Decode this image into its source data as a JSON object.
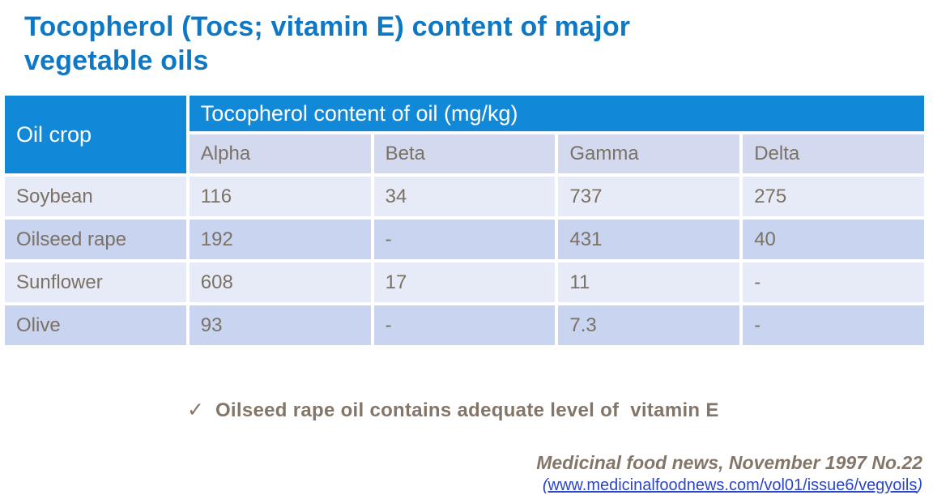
{
  "title": {
    "line1": "Tocopherol (Tocs; vitamin E) content of major",
    "line2": "vegetable oils"
  },
  "table": {
    "corner_header": "Oil crop",
    "group_header": "Tocopherol content of oil (mg/kg)",
    "columns": [
      "Alpha",
      "Beta",
      "Gamma",
      "Delta"
    ],
    "rows": [
      {
        "crop": "Soybean",
        "values": [
          "116",
          "34",
          "737",
          "275"
        ]
      },
      {
        "crop": "Oilseed rape",
        "values": [
          "192",
          "-",
          "431",
          "40"
        ]
      },
      {
        "crop": "Sunflower",
        "values": [
          "608",
          "17",
          "11",
          "-"
        ]
      },
      {
        "crop": "Olive",
        "values": [
          "93",
          "-",
          "7.3",
          "-"
        ]
      }
    ]
  },
  "note": {
    "check_icon": "✓",
    "text": "Oilseed rape oil contains adequate level of  vitamin E"
  },
  "source": {
    "citation": "Medicinal food news, November 1997 No.22",
    "paren_open": "(",
    "link_text": "www.medicinalfoodnews.com/vol01/issue6/vegyoils",
    "paren_close": ")"
  },
  "colors": {
    "title_blue": "#0e78c4",
    "header_blue": "#1289d8",
    "subheader_lavender": "#d3daf0",
    "row_light": "#e7ebf8",
    "row_dark": "#c8d4f0",
    "table_text": "#7b7164",
    "note_brown": "#837669",
    "link_blue": "#2b46c8"
  },
  "chart_data": {
    "type": "table",
    "title": "Tocopherol (Tocs; vitamin E) content of major vegetable oils",
    "row_header": "Oil crop",
    "group_header": "Tocopherol content of oil (mg/kg)",
    "columns": [
      "Alpha",
      "Beta",
      "Gamma",
      "Delta"
    ],
    "rows": [
      {
        "crop": "Soybean",
        "alpha": 116,
        "beta": 34,
        "gamma": 737,
        "delta": 275
      },
      {
        "crop": "Oilseed rape",
        "alpha": 192,
        "beta": null,
        "gamma": 431,
        "delta": 40
      },
      {
        "crop": "Sunflower",
        "alpha": 608,
        "beta": 17,
        "gamma": 11,
        "delta": null
      },
      {
        "crop": "Olive",
        "alpha": 93,
        "beta": null,
        "gamma": 7.3,
        "delta": null
      }
    ]
  }
}
